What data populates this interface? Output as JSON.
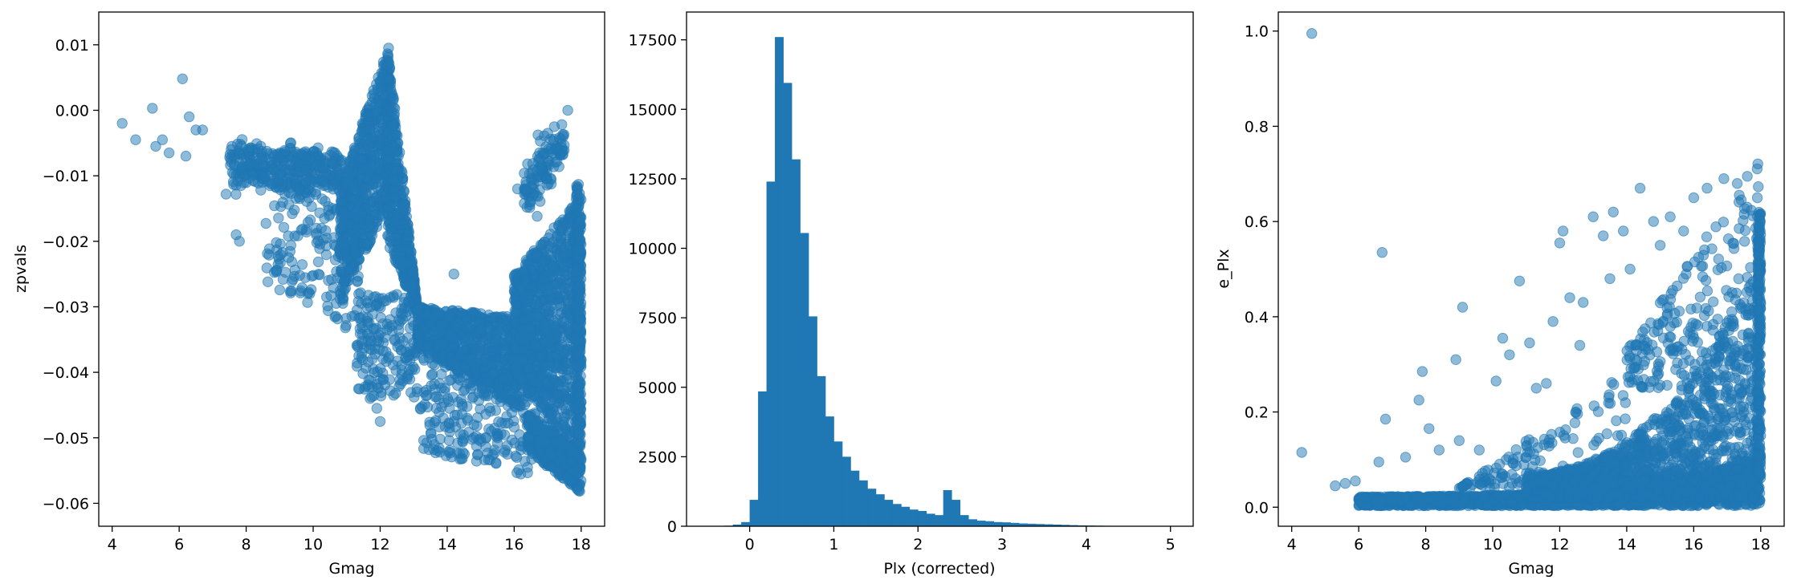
{
  "colors": {
    "marker": "#1f77b4",
    "axes": "#000000",
    "background": "#ffffff"
  },
  "chart_data": [
    {
      "type": "scatter",
      "xlabel": "Gmag",
      "ylabel": "zpvals",
      "xlim": [
        3.6,
        18.7
      ],
      "ylim": [
        -0.0635,
        0.015
      ],
      "xticks": [
        4,
        6,
        8,
        10,
        12,
        14,
        16,
        18
      ],
      "yticks": [
        -0.06,
        -0.05,
        -0.04,
        -0.03,
        -0.02,
        -0.01,
        0.0,
        0.01
      ],
      "ytick_labels": [
        "−0.06",
        "−0.05",
        "−0.04",
        "−0.03",
        "−0.02",
        "−0.01",
        "0.00",
        "0.01"
      ],
      "marker_alpha": 0.5,
      "outliers": [
        [
          4.3,
          -0.002
        ],
        [
          4.7,
          -0.0045
        ],
        [
          5.2,
          0.0003
        ],
        [
          5.3,
          -0.0055
        ],
        [
          5.5,
          -0.0045
        ],
        [
          5.7,
          -0.0065
        ],
        [
          6.1,
          0.0048
        ],
        [
          6.2,
          -0.007
        ],
        [
          6.3,
          -0.001
        ],
        [
          6.5,
          -0.003
        ],
        [
          6.7,
          -0.003
        ],
        [
          7.7,
          -0.019
        ],
        [
          7.8,
          -0.02
        ],
        [
          7.4,
          -0.0128
        ],
        [
          8.9,
          -0.0245
        ],
        [
          9.1,
          -0.0258
        ],
        [
          9.4,
          -0.0258
        ],
        [
          9.6,
          -0.0252
        ],
        [
          9.9,
          -0.028
        ],
        [
          10.4,
          -0.0285
        ],
        [
          10.1,
          -0.018
        ],
        [
          10.4,
          -0.0195
        ],
        [
          11.7,
          -0.044
        ],
        [
          11.9,
          -0.0455
        ],
        [
          12.0,
          -0.0475
        ],
        [
          12.4,
          -0.0435
        ],
        [
          13.2,
          -0.0455
        ],
        [
          13.4,
          -0.0435
        ],
        [
          14.3,
          -0.0465
        ],
        [
          14.6,
          -0.047
        ],
        [
          14.8,
          -0.048
        ],
        [
          15.5,
          -0.05
        ],
        [
          15.8,
          -0.0525
        ],
        [
          16.4,
          -0.0545
        ],
        [
          17.0,
          -0.0035
        ],
        [
          17.2,
          -0.0025
        ],
        [
          17.6,
          0.0
        ],
        [
          13.1,
          -0.0425
        ],
        [
          12.8,
          -0.041
        ],
        [
          14.2,
          -0.025
        ],
        [
          16.1,
          -0.012
        ],
        [
          16.8,
          -0.009
        ]
      ]
    },
    {
      "type": "bar",
      "xlabel": "Plx (corrected)",
      "ylabel": "",
      "xlim": [
        -0.75,
        5.27
      ],
      "ylim": [
        0,
        18500
      ],
      "xticks": [
        0,
        1,
        2,
        3,
        4,
        5
      ],
      "yticks": [
        0,
        2500,
        5000,
        7500,
        10000,
        12500,
        15000,
        17500
      ],
      "bin_width": 0.1,
      "bin_edges_start": -0.4,
      "values": [
        5,
        20,
        60,
        150,
        950,
        4850,
        12400,
        17600,
        15950,
        13200,
        10550,
        7550,
        5400,
        3950,
        3050,
        2500,
        2000,
        1650,
        1350,
        1150,
        950,
        800,
        700,
        600,
        550,
        450,
        400,
        1300,
        950,
        400,
        250,
        200,
        180,
        150,
        140,
        120,
        100,
        90,
        80,
        70,
        60,
        50,
        40,
        30,
        25,
        20,
        15,
        12,
        10,
        8,
        6,
        5,
        5,
        4
      ]
    },
    {
      "type": "scatter",
      "xlabel": "Gmag",
      "ylabel": "e_Plx",
      "xlim": [
        3.6,
        18.7
      ],
      "ylim": [
        -0.04,
        1.04
      ],
      "xticks": [
        4,
        6,
        8,
        10,
        12,
        14,
        16,
        18
      ],
      "yticks": [
        0.0,
        0.2,
        0.4,
        0.6,
        0.8,
        1.0
      ],
      "ytick_labels": [
        "0.0",
        "0.2",
        "0.4",
        "0.6",
        "0.8",
        "1.0"
      ],
      "marker_alpha": 0.5,
      "outliers": [
        [
          4.3,
          0.115
        ],
        [
          4.6,
          0.995
        ],
        [
          5.3,
          0.045
        ],
        [
          5.6,
          0.05
        ],
        [
          5.9,
          0.055
        ],
        [
          6.2,
          0.02
        ],
        [
          6.6,
          0.095
        ],
        [
          6.7,
          0.535
        ],
        [
          6.8,
          0.185
        ],
        [
          7.4,
          0.105
        ],
        [
          7.8,
          0.225
        ],
        [
          7.9,
          0.285
        ],
        [
          8.1,
          0.165
        ],
        [
          8.4,
          0.12
        ],
        [
          8.9,
          0.31
        ],
        [
          9.0,
          0.14
        ],
        [
          9.1,
          0.42
        ],
        [
          9.6,
          0.12
        ],
        [
          10.1,
          0.265
        ],
        [
          10.3,
          0.355
        ],
        [
          10.5,
          0.32
        ],
        [
          10.8,
          0.475
        ],
        [
          11.1,
          0.345
        ],
        [
          11.6,
          0.26
        ],
        [
          11.8,
          0.39
        ],
        [
          12.0,
          0.555
        ],
        [
          12.1,
          0.58
        ],
        [
          12.3,
          0.44
        ],
        [
          12.7,
          0.43
        ],
        [
          13.0,
          0.61
        ],
        [
          13.3,
          0.57
        ],
        [
          13.6,
          0.62
        ],
        [
          13.9,
          0.58
        ],
        [
          14.4,
          0.67
        ],
        [
          14.8,
          0.6
        ],
        [
          15.3,
          0.61
        ],
        [
          15.7,
          0.58
        ],
        [
          16.0,
          0.65
        ],
        [
          16.4,
          0.67
        ],
        [
          16.9,
          0.69
        ],
        [
          17.3,
          0.68
        ],
        [
          17.6,
          0.695
        ],
        [
          17.9,
          0.65
        ],
        [
          13.5,
          0.48
        ],
        [
          14.1,
          0.5
        ],
        [
          15.0,
          0.55
        ],
        [
          12.6,
          0.34
        ],
        [
          11.3,
          0.25
        ]
      ]
    }
  ]
}
